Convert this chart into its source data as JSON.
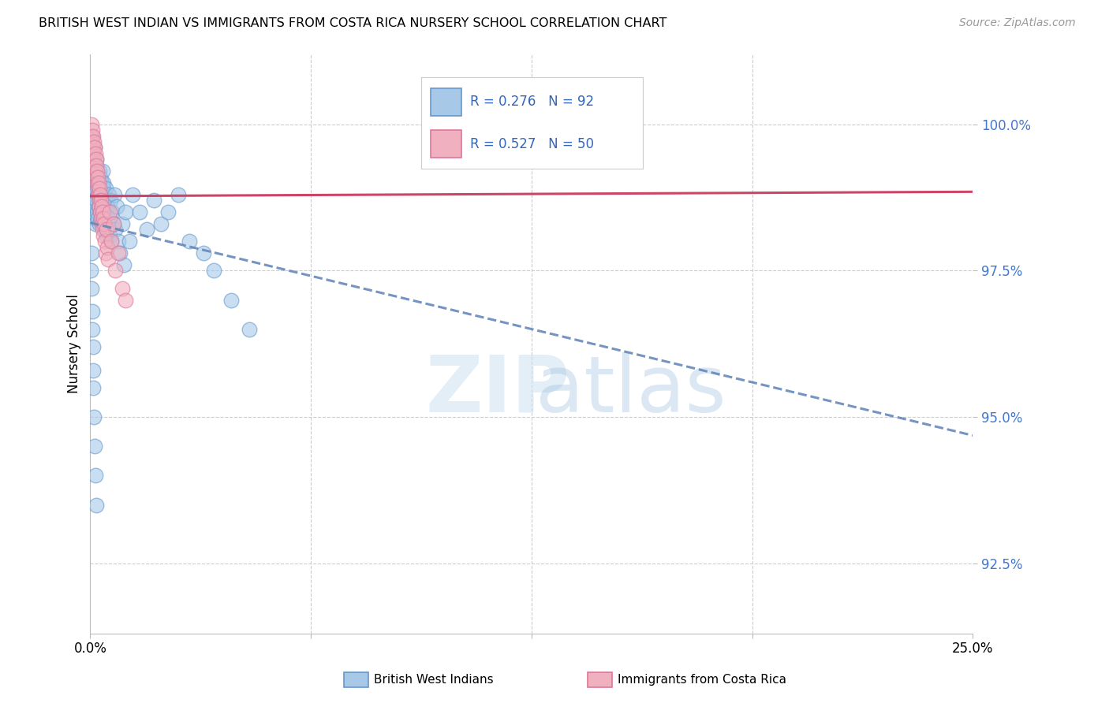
{
  "title": "BRITISH WEST INDIAN VS IMMIGRANTS FROM COSTA RICA NURSERY SCHOOL CORRELATION CHART",
  "source": "Source: ZipAtlas.com",
  "ylabel": "Nursery School",
  "ytick_labels": [
    "92.5%",
    "95.0%",
    "97.5%",
    "100.0%"
  ],
  "ytick_values": [
    92.5,
    95.0,
    97.5,
    100.0
  ],
  "xlim": [
    0.0,
    25.0
  ],
  "ylim": [
    91.3,
    101.2
  ],
  "blue_color": "#a8c8e8",
  "pink_color": "#f0b0c0",
  "blue_edge_color": "#6699cc",
  "pink_edge_color": "#dd7799",
  "blue_line_color": "#6688bb",
  "pink_line_color": "#cc4466",
  "blue_R": 0.276,
  "blue_N": 92,
  "pink_R": 0.527,
  "pink_N": 50,
  "legend_label_blue": "British West Indians",
  "legend_label_pink": "Immigrants from Costa Rica",
  "background_color": "#ffffff",
  "blue_scatter_x": [
    0.02,
    0.03,
    0.04,
    0.05,
    0.05,
    0.06,
    0.07,
    0.08,
    0.09,
    0.1,
    0.1,
    0.11,
    0.12,
    0.13,
    0.14,
    0.15,
    0.15,
    0.16,
    0.17,
    0.18,
    0.19,
    0.2,
    0.21,
    0.22,
    0.23,
    0.24,
    0.25,
    0.26,
    0.27,
    0.28,
    0.29,
    0.3,
    0.31,
    0.32,
    0.33,
    0.34,
    0.35,
    0.36,
    0.37,
    0.38,
    0.39,
    0.4,
    0.41,
    0.42,
    0.43,
    0.44,
    0.45,
    0.46,
    0.47,
    0.48,
    0.49,
    0.5,
    0.52,
    0.54,
    0.55,
    0.58,
    0.6,
    0.62,
    0.65,
    0.68,
    0.7,
    0.75,
    0.8,
    0.85,
    0.9,
    0.95,
    1.0,
    1.1,
    1.2,
    1.4,
    1.6,
    1.8,
    2.0,
    2.2,
    2.5,
    2.8,
    3.2,
    3.5,
    4.0,
    4.5,
    0.02,
    0.03,
    0.04,
    0.05,
    0.06,
    0.07,
    0.08,
    0.09,
    0.1,
    0.12,
    0.14,
    0.16
  ],
  "blue_scatter_y": [
    98.5,
    99.2,
    99.6,
    99.8,
    98.8,
    99.4,
    99.0,
    99.5,
    98.7,
    99.3,
    98.4,
    99.1,
    98.9,
    99.6,
    98.6,
    99.2,
    98.3,
    99.0,
    98.7,
    99.4,
    98.5,
    99.1,
    98.8,
    98.4,
    99.0,
    98.6,
    99.2,
    98.3,
    98.9,
    98.5,
    99.1,
    98.7,
    98.4,
    99.0,
    98.6,
    99.2,
    98.3,
    98.9,
    98.5,
    99.0,
    98.2,
    98.8,
    98.4,
    98.7,
    98.2,
    98.9,
    98.5,
    98.1,
    98.7,
    98.3,
    98.6,
    98.2,
    98.8,
    98.1,
    98.4,
    98.7,
    98.0,
    98.5,
    98.3,
    98.8,
    98.2,
    98.6,
    98.0,
    97.8,
    98.3,
    97.6,
    98.5,
    98.0,
    98.8,
    98.5,
    98.2,
    98.7,
    98.3,
    98.5,
    98.8,
    98.0,
    97.8,
    97.5,
    97.0,
    96.5,
    97.5,
    97.2,
    97.8,
    96.8,
    96.5,
    96.2,
    95.8,
    95.5,
    95.0,
    94.5,
    94.0,
    93.5
  ],
  "pink_scatter_x": [
    0.02,
    0.03,
    0.04,
    0.05,
    0.06,
    0.07,
    0.08,
    0.09,
    0.1,
    0.11,
    0.12,
    0.13,
    0.14,
    0.15,
    0.16,
    0.17,
    0.18,
    0.19,
    0.2,
    0.21,
    0.22,
    0.23,
    0.24,
    0.25,
    0.26,
    0.27,
    0.28,
    0.29,
    0.3,
    0.31,
    0.32,
    0.33,
    0.34,
    0.35,
    0.36,
    0.38,
    0.4,
    0.42,
    0.44,
    0.46,
    0.48,
    0.5,
    0.55,
    0.6,
    0.65,
    0.7,
    0.8,
    0.9,
    1.0,
    11.0
  ],
  "pink_scatter_y": [
    99.5,
    99.8,
    100.0,
    99.7,
    99.9,
    99.6,
    99.8,
    99.5,
    99.7,
    99.4,
    99.6,
    99.3,
    99.5,
    99.2,
    99.4,
    99.1,
    99.3,
    99.0,
    99.2,
    98.9,
    99.1,
    98.8,
    99.0,
    98.7,
    98.9,
    98.6,
    98.8,
    98.5,
    98.7,
    98.4,
    98.6,
    98.3,
    98.5,
    98.2,
    98.4,
    98.1,
    98.3,
    98.0,
    97.8,
    98.2,
    97.9,
    97.7,
    98.5,
    98.0,
    98.3,
    97.5,
    97.8,
    97.2,
    97.0,
    99.5
  ]
}
